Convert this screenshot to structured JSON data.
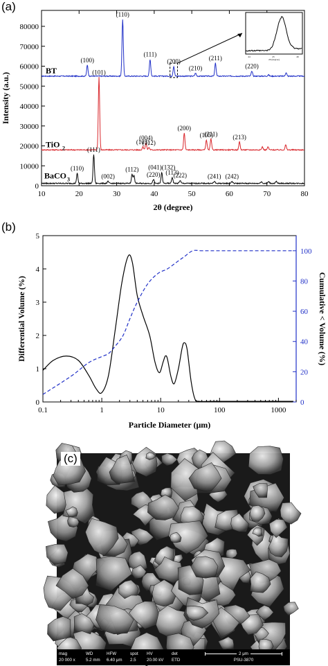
{
  "panels": {
    "a": "(a)",
    "b": "(b)",
    "c": "(c)"
  },
  "chart_data": [
    {
      "type": "line",
      "title": "",
      "xlabel": "2θ (degree)",
      "ylabel": "Intensity (a.u.)",
      "xlim": [
        10,
        80
      ],
      "ylim": [
        0,
        88000
      ],
      "xticks": [
        10,
        20,
        30,
        40,
        50,
        60,
        70,
        80
      ],
      "yticks": [
        0,
        10000,
        20000,
        30000,
        40000,
        50000,
        60000,
        70000,
        80000
      ],
      "grid": false,
      "series": [
        {
          "name": "BT",
          "color": "#1f2fc7",
          "baseline": 55000,
          "peaks": [
            {
              "x": 22.2,
              "h": 5500,
              "label": "(100)"
            },
            {
              "x": 31.6,
              "h": 28500,
              "label": "(110)"
            },
            {
              "x": 38.9,
              "h": 8500,
              "label": "(111)"
            },
            {
              "x": 45.2,
              "h": 5000,
              "label": "(200)"
            },
            {
              "x": 51.0,
              "h": 1500,
              "label": "(210)"
            },
            {
              "x": 56.3,
              "h": 6500,
              "label": "(211)"
            },
            {
              "x": 66.0,
              "h": 2500,
              "label": "(220)"
            },
            {
              "x": 70.4,
              "h": 700,
              "label": ""
            },
            {
              "x": 75.1,
              "h": 1800,
              "label": ""
            }
          ]
        },
        {
          "name": "TiO2",
          "color": "#d9262b",
          "baseline": 18000,
          "peaks": [
            {
              "x": 25.3,
              "h": 36500,
              "label": "(101)"
            },
            {
              "x": 37.0,
              "h": 1500,
              "label": "(103)"
            },
            {
              "x": 37.8,
              "h": 3500,
              "label": "(004)"
            },
            {
              "x": 38.6,
              "h": 1200,
              "label": "(112)"
            },
            {
              "x": 48.0,
              "h": 8500,
              "label": "(200)"
            },
            {
              "x": 53.9,
              "h": 5000,
              "label": "(105)"
            },
            {
              "x": 55.1,
              "h": 5500,
              "label": "(211)"
            },
            {
              "x": 62.7,
              "h": 4000,
              "label": "(213)"
            },
            {
              "x": 68.8,
              "h": 1500,
              "label": ""
            },
            {
              "x": 70.3,
              "h": 1500,
              "label": ""
            },
            {
              "x": 75.0,
              "h": 2500,
              "label": ""
            }
          ]
        },
        {
          "name": "BaCO3",
          "color": "#000000",
          "baseline": 1200,
          "peaks": [
            {
              "x": 19.5,
              "h": 5000,
              "label": "(110)"
            },
            {
              "x": 23.9,
              "h": 14500,
              "label": "(111)"
            },
            {
              "x": 27.7,
              "h": 1000,
              "label": "(002)"
            },
            {
              "x": 34.1,
              "h": 4500,
              "label": "(112)"
            },
            {
              "x": 34.6,
              "h": 4000,
              "label": ""
            },
            {
              "x": 39.8,
              "h": 2000,
              "label": "(220)"
            },
            {
              "x": 42.0,
              "h": 5500,
              "label": "(041)(132)"
            },
            {
              "x": 44.8,
              "h": 3000,
              "label": "(113)"
            },
            {
              "x": 46.9,
              "h": 1500,
              "label": "(222)"
            },
            {
              "x": 56.0,
              "h": 1000,
              "label": "(241)"
            },
            {
              "x": 60.7,
              "h": 1000,
              "label": "(242)"
            },
            {
              "x": 68.5,
              "h": 900,
              "label": ""
            },
            {
              "x": 70.5,
              "h": 900,
              "label": ""
            },
            {
              "x": 72.5,
              "h": 900,
              "label": ""
            }
          ]
        }
      ],
      "series_labels": [
        "BT",
        "TiO",
        "2",
        "BaCO",
        "3"
      ],
      "inset": {
        "xlabel": "2θ (degree)",
        "xticks": [
          "44",
          "45",
          "46"
        ],
        "description_peak_x": 45.3
      },
      "annotation": "(200) dashed box with arrow to inset"
    },
    {
      "type": "line",
      "title": "",
      "xlabel": "Particle Diameter (μm)",
      "ylabel": "Differential Volume (%)",
      "y2label": "Cumulative < Volume (%)",
      "xscale": "log",
      "xlim": [
        0.1,
        2000
      ],
      "ylim": [
        0,
        5
      ],
      "y2lim": [
        0,
        110
      ],
      "xticks": [
        "0.1",
        "1",
        "10",
        "100",
        "1000"
      ],
      "yticks": [
        "0",
        "1",
        "2",
        "3",
        "4",
        "5"
      ],
      "y2ticks": [
        "0",
        "20",
        "40",
        "60",
        "80",
        "100"
      ],
      "grid": false,
      "series": [
        {
          "name": "Differential",
          "axis": "left",
          "color": "#000000",
          "style": "solid",
          "points": [
            [
              0.1,
              0.95
            ],
            [
              0.15,
              1.25
            ],
            [
              0.25,
              1.38
            ],
            [
              0.4,
              1.25
            ],
            [
              0.6,
              0.8
            ],
            [
              0.8,
              0.4
            ],
            [
              1.0,
              0.28
            ],
            [
              1.3,
              0.8
            ],
            [
              1.7,
              2.2
            ],
            [
              2.2,
              3.6
            ],
            [
              2.8,
              4.38
            ],
            [
              3.3,
              4.2
            ],
            [
              4,
              3.2
            ],
            [
              5,
              2.6
            ],
            [
              6.5,
              2.0
            ],
            [
              8,
              1.2
            ],
            [
              9.5,
              0.88
            ],
            [
              11,
              1.2
            ],
            [
              12,
              1.38
            ],
            [
              13,
              1.3
            ],
            [
              15,
              0.75
            ],
            [
              17,
              0.55
            ],
            [
              20,
              1.0
            ],
            [
              23,
              1.6
            ],
            [
              25,
              1.78
            ],
            [
              28,
              1.6
            ],
            [
              33,
              0.6
            ],
            [
              38,
              0.1
            ],
            [
              45,
              0.02
            ],
            [
              100,
              0.02
            ],
            [
              1000,
              0.02
            ],
            [
              1800,
              0.02
            ]
          ]
        },
        {
          "name": "Cumulative",
          "axis": "right",
          "color": "#1f2fc7",
          "style": "dashed",
          "points": [
            [
              0.1,
              5
            ],
            [
              0.3,
              17
            ],
            [
              0.6,
              26
            ],
            [
              1.0,
              30
            ],
            [
              1.3,
              32
            ],
            [
              1.7,
              37
            ],
            [
              2.3,
              44
            ],
            [
              3,
              55
            ],
            [
              4,
              66
            ],
            [
              6,
              78
            ],
            [
              9,
              85
            ],
            [
              13,
              88
            ],
            [
              18,
              92
            ],
            [
              25,
              96
            ],
            [
              35,
              100
            ],
            [
              50,
              100
            ],
            [
              100,
              100
            ],
            [
              1000,
              100
            ],
            [
              1800,
              100
            ]
          ]
        }
      ]
    }
  ],
  "sem": {
    "labels": {
      "mag": {
        "label": "mag",
        "value": "20 000 x"
      },
      "wd": {
        "label": "WD",
        "value": "5.2 mm"
      },
      "hfw": {
        "label": "HFW",
        "value": "6.40 μm"
      },
      "spot": {
        "label": "spot",
        "value": "2.5"
      },
      "hv": {
        "label": "HV",
        "value": "20.00 kV"
      },
      "det": {
        "label": "det",
        "value": "ETD"
      },
      "scale": "2 μm",
      "id": "PSU-3870"
    }
  }
}
